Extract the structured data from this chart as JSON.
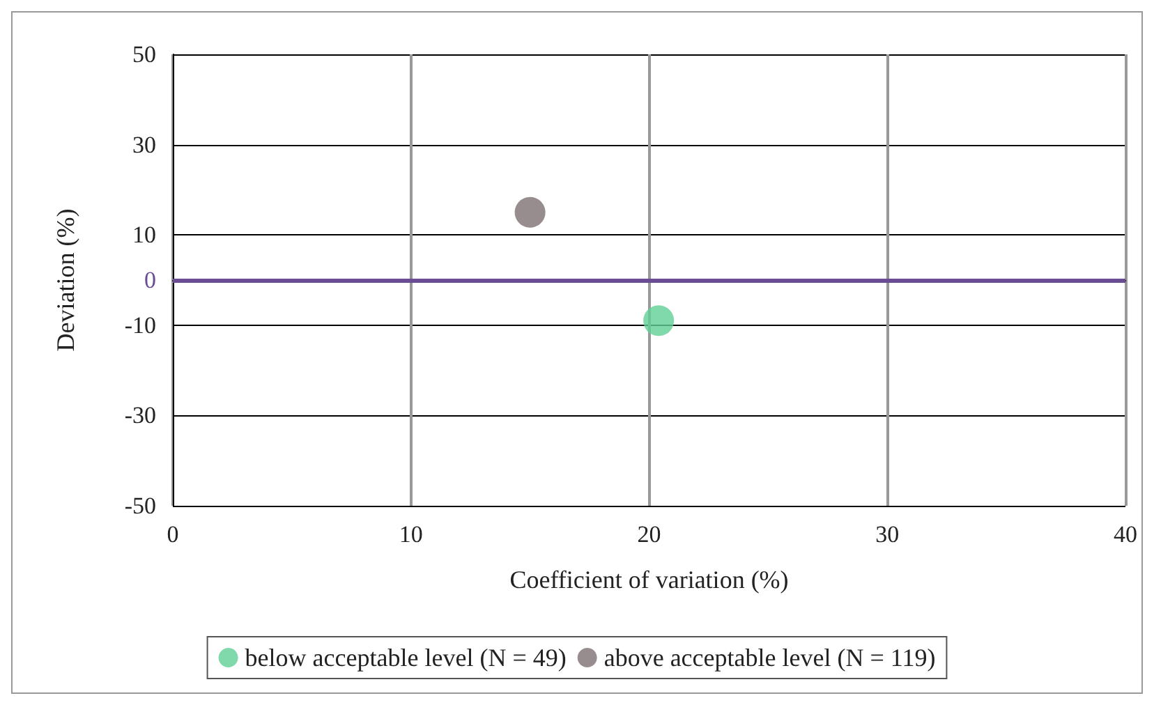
{
  "chart_data": {
    "type": "scatter",
    "xlabel": "Coefficient of variation (%)",
    "ylabel": "Deviation (%)",
    "xlim": [
      0,
      40
    ],
    "xticks": [
      0,
      10,
      20,
      30,
      40
    ],
    "ylim": [
      -50,
      50
    ],
    "yticks": [
      -50,
      -30,
      -10,
      0,
      10,
      30,
      50
    ],
    "series": [
      {
        "name": "below acceptable level (N = 49)",
        "color": "#5fcf96",
        "x": [
          20.4
        ],
        "values": [
          -9
        ]
      },
      {
        "name": "above acceptable level (N = 119)",
        "color": "#7d7073",
        "x": [
          15
        ],
        "values": [
          15
        ]
      }
    ],
    "ref_lines": [
      {
        "axis": "y",
        "value": 0,
        "color": "#6a4c93"
      }
    ],
    "grid": true,
    "legend": "bottom",
    "marker": "circle"
  }
}
